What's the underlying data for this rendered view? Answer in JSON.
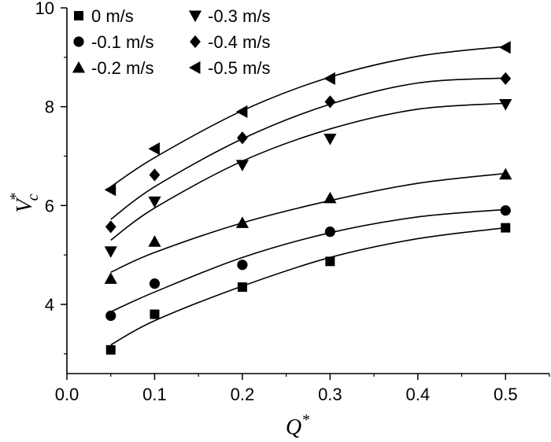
{
  "chart_data": {
    "type": "scatter",
    "title": "",
    "xlabel": {
      "main": "Q",
      "sup": "*"
    },
    "ylabel": {
      "main": "V",
      "sub": "c",
      "sup": "*"
    },
    "xlim": [
      0.0,
      0.55
    ],
    "ylim": [
      2.6,
      10.0
    ],
    "xticks": [
      0.0,
      0.1,
      0.2,
      0.3,
      0.4,
      0.5
    ],
    "xtick_labels": [
      "0.0",
      "0.1",
      "0.2",
      "0.3",
      "0.4",
      "0.5"
    ],
    "yticks": [
      4,
      6,
      8,
      10
    ],
    "ytick_labels": [
      "4",
      "6",
      "8",
      "10"
    ],
    "legend_position": "top-left",
    "x": [
      0.05,
      0.1,
      0.2,
      0.3,
      0.5
    ],
    "series": [
      {
        "name": "0 m/s",
        "marker": "square",
        "values": [
          3.08,
          3.8,
          4.35,
          4.87,
          5.55
        ],
        "fit": [
          0.05,
          3.18,
          0.1,
          3.67,
          0.2,
          4.37,
          0.3,
          4.95,
          0.4,
          5.33,
          0.5,
          5.55
        ]
      },
      {
        "name": "-0.1 m/s",
        "marker": "circle",
        "values": [
          3.77,
          4.42,
          4.8,
          5.47,
          5.9
        ],
        "fit": [
          0.05,
          3.85,
          0.1,
          4.25,
          0.2,
          4.95,
          0.3,
          5.45,
          0.4,
          5.77,
          0.5,
          5.92
        ]
      },
      {
        "name": "-0.2 m/s",
        "marker": "triangle-up",
        "values": [
          4.52,
          5.27,
          5.65,
          6.15,
          6.63
        ],
        "fit": [
          0.05,
          4.65,
          0.1,
          5.05,
          0.2,
          5.65,
          0.3,
          6.1,
          0.4,
          6.45,
          0.5,
          6.65
        ]
      },
      {
        "name": "-0.3 m/s",
        "marker": "triangle-down",
        "values": [
          5.07,
          6.08,
          6.82,
          7.35,
          8.05
        ],
        "fit": [
          0.05,
          5.3,
          0.1,
          5.95,
          0.2,
          6.9,
          0.3,
          7.55,
          0.4,
          7.95,
          0.5,
          8.07
        ]
      },
      {
        "name": "-0.4 m/s",
        "marker": "diamond",
        "values": [
          5.57,
          6.62,
          7.37,
          8.1,
          8.57
        ],
        "fit": [
          0.05,
          5.72,
          0.1,
          6.38,
          0.2,
          7.35,
          0.3,
          8.05,
          0.4,
          8.48,
          0.5,
          8.58
        ]
      },
      {
        "name": "-0.5 m/s",
        "marker": "triangle-left",
        "values": [
          6.32,
          7.15,
          7.9,
          8.57,
          9.2
        ],
        "fit": [
          0.05,
          6.38,
          0.1,
          6.97,
          0.2,
          7.92,
          0.3,
          8.6,
          0.4,
          9.02,
          0.5,
          9.22
        ]
      }
    ]
  }
}
